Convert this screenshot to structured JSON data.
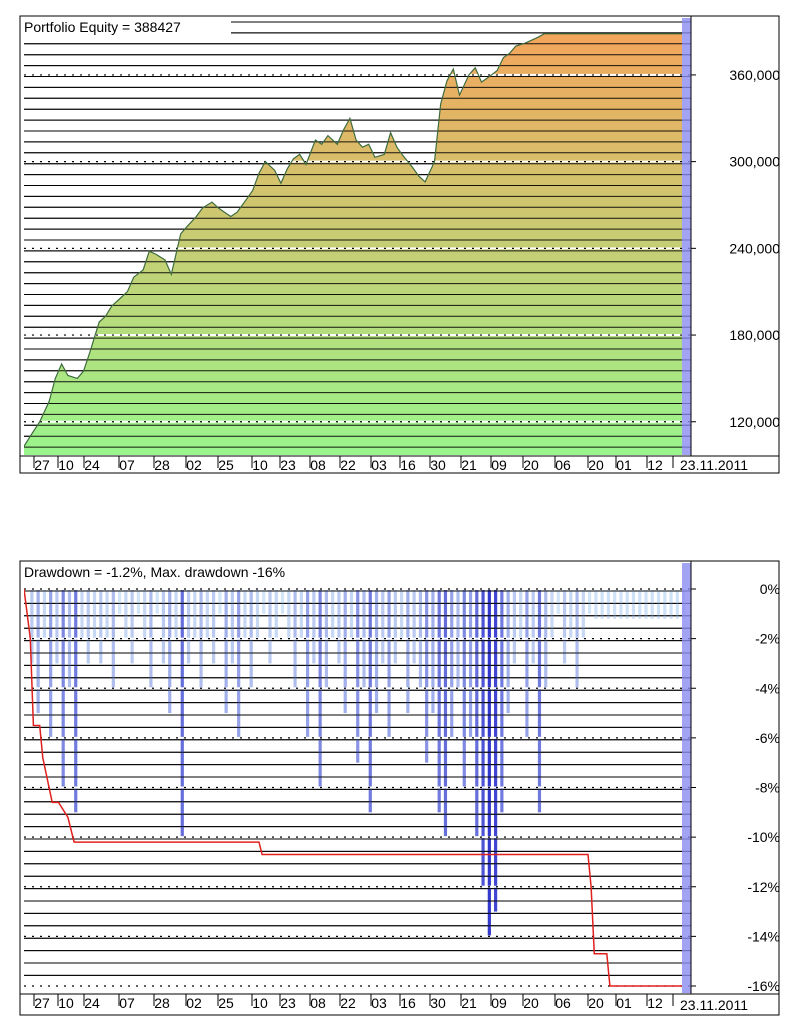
{
  "equity_panel": {
    "title": "Portfolio Equity = 388427",
    "date_label": "23.11.2011",
    "x_tick_labels": [
      "27",
      "10",
      "24",
      "07",
      "28",
      "02",
      "25",
      "10",
      "23",
      "08",
      "22",
      "03",
      "16",
      "30",
      "21",
      "09",
      "20",
      "06",
      "20",
      "01",
      "12",
      "23"
    ],
    "y_tick_labels": [
      "360,000",
      "300,000",
      "240,000",
      "180,000",
      "120,000"
    ]
  },
  "drawdown_panel": {
    "title": "Drawdown = -1.2%, Max. drawdown -16%",
    "date_label": "23.11.2011",
    "x_tick_labels": [
      "27",
      "10",
      "24",
      "07",
      "28",
      "02",
      "25",
      "10",
      "23",
      "08",
      "22",
      "03",
      "16",
      "30",
      "21",
      "09",
      "20",
      "06",
      "20",
      "01",
      "12",
      "23"
    ],
    "y_tick_labels": [
      "0%",
      "-2%",
      "-4%",
      "-6%",
      "-8%",
      "-10%",
      "-12%",
      "-14%",
      "-16%"
    ]
  },
  "colors": {
    "equity_fill_top": "#f3a65c",
    "equity_fill_bottom": "#9af58c",
    "equity_line": "#3e6b3e",
    "drawdown_fill_top": "#dff2fb",
    "drawdown_fill_bottom": "#1c1fc8",
    "max_drawdown_line": "#e0201c",
    "current_bar": "#8c8cf0",
    "grid": "#000000"
  },
  "chart_data": [
    {
      "type": "area",
      "title": "Portfolio Equity = 388427",
      "x_tick_labels": [
        "27",
        "10",
        "24",
        "07",
        "28",
        "02",
        "25",
        "10",
        "23",
        "08",
        "22",
        "03",
        "16",
        "30",
        "21",
        "09",
        "20",
        "06",
        "20",
        "01",
        "12",
        "23.11.2011"
      ],
      "ylim": [
        97000,
        398000
      ],
      "y_ticks": [
        120000,
        180000,
        240000,
        300000,
        360000
      ],
      "grid": true,
      "series": [
        {
          "x": [
            0,
            2,
            5,
            8,
            10,
            12,
            14,
            17,
            19,
            21,
            24,
            26,
            28,
            31,
            33,
            35,
            38,
            40,
            42,
            45,
            47,
            50,
            52,
            55,
            57,
            60,
            62,
            64,
            66,
            68,
            71,
            73,
            75,
            77,
            80,
            82,
            84,
            86,
            88,
            90,
            93,
            95,
            97,
            100,
            102,
            104,
            106,
            108,
            110,
            112,
            115,
            117,
            119,
            121,
            124,
            126,
            128,
            131,
            133,
            135,
            137,
            139,
            142,
            144,
            146,
            148,
            151,
            153,
            155,
            157,
            160,
            162,
            164,
            166,
            168,
            171,
            173,
            175,
            177,
            179,
            182,
            184,
            186,
            188,
            190,
            193,
            195,
            197,
            199,
            202,
            204,
            206,
            208,
            210
          ],
          "values": [
            103000,
            110000,
            120000,
            134000,
            150000,
            160000,
            152000,
            150000,
            155000,
            168000,
            189000,
            193000,
            200000,
            206000,
            210000,
            220000,
            225000,
            238000,
            236000,
            232000,
            222000,
            250000,
            255000,
            262000,
            268000,
            272000,
            268000,
            265000,
            262000,
            265000,
            274000,
            280000,
            292000,
            300000,
            294000,
            285000,
            295000,
            302000,
            305000,
            298000,
            315000,
            312000,
            318000,
            312000,
            322000,
            330000,
            315000,
            310000,
            312000,
            303000,
            305000,
            320000,
            310000,
            304000,
            296000,
            290000,
            286000,
            300000,
            340000,
            356000,
            364000,
            346000,
            360000,
            365000,
            355000,
            358000,
            363000,
            372000,
            375000,
            380000,
            382000,
            384000,
            386000,
            388427,
            388427,
            388427,
            388427,
            388427,
            388427,
            388427,
            388427,
            388427,
            388427,
            388427,
            388427,
            388427,
            388427,
            388427,
            388427,
            388427,
            388427,
            388427,
            388427,
            388427
          ]
        }
      ]
    },
    {
      "type": "area",
      "title": "Drawdown = -1.2%, Max. drawdown -16%",
      "x_tick_labels": [
        "27",
        "10",
        "24",
        "07",
        "28",
        "02",
        "25",
        "10",
        "23",
        "08",
        "22",
        "03",
        "16",
        "30",
        "21",
        "09",
        "20",
        "06",
        "20",
        "01",
        "12",
        "23.11.2011"
      ],
      "ylim": [
        -16,
        0
      ],
      "y_ticks": [
        0,
        -2,
        -4,
        -6,
        -8,
        -10,
        -12,
        -14,
        -16
      ],
      "grid": true,
      "series": [
        {
          "name": "Drawdown",
          "x": [
            0,
            2,
            4,
            6,
            8,
            10,
            12,
            14,
            16,
            18,
            20,
            22,
            24,
            26,
            28,
            30,
            32,
            34,
            36,
            38,
            40,
            42,
            44,
            46,
            48,
            50,
            52,
            54,
            56,
            58,
            60,
            62,
            64,
            66,
            68,
            70,
            72,
            74,
            76,
            78,
            80,
            82,
            84,
            86,
            88,
            90,
            92,
            94,
            96,
            98,
            100,
            102,
            104,
            106,
            108,
            110,
            112,
            114,
            116,
            118,
            120,
            122,
            124,
            126,
            128,
            130,
            132,
            134,
            136,
            138,
            140,
            142,
            144,
            146,
            148,
            150,
            152,
            154,
            156,
            158,
            160,
            162,
            164,
            166,
            168,
            170,
            172,
            174,
            176,
            178,
            180,
            182,
            184,
            186,
            188,
            190,
            192,
            194,
            196,
            198,
            200,
            202,
            204,
            206,
            208,
            210
          ],
          "values": [
            0,
            -3,
            -5,
            -2,
            -6,
            -3,
            -8,
            -4,
            -9,
            -2,
            -3,
            -2,
            -3,
            -2,
            -4,
            -1,
            -2,
            -3,
            -1,
            -2,
            -4,
            -1,
            -3,
            -5,
            -2,
            -10,
            -3,
            -2,
            -4,
            -2,
            -3,
            -1,
            -5,
            -3,
            -6,
            -2,
            -4,
            -2,
            -1,
            -3,
            -2,
            -1,
            -2,
            -4,
            -2,
            -6,
            -3,
            -8,
            -4,
            -2,
            -3,
            -5,
            -2,
            -7,
            -4,
            -9,
            -5,
            -3,
            -6,
            -3,
            -2,
            -5,
            -3,
            -4,
            -7,
            -5,
            -9,
            -10,
            -6,
            -4,
            -8,
            -6,
            -10,
            -12,
            -14,
            -13,
            -9,
            -5,
            -3,
            -2,
            -6,
            -3,
            -9,
            -4,
            -2,
            -1,
            -3,
            -2,
            -4,
            -2,
            -1,
            -1.2,
            -1.2,
            -1.2,
            -1.2,
            -1.2,
            -1.2,
            -1.2,
            -1.2,
            -1.2,
            -1.2,
            -1.2,
            -1.2,
            -1.2,
            -1.2,
            -1.2
          ]
        },
        {
          "name": "Max. drawdown",
          "x": [
            0,
            2,
            3,
            5,
            6,
            9,
            10,
            11,
            14,
            16,
            18,
            20,
            22,
            28,
            29,
            30,
            40,
            50,
            60,
            70,
            75,
            76,
            80,
            90,
            100,
            110,
            120,
            130,
            140,
            150,
            160,
            170,
            180,
            181,
            182,
            186,
            187,
            188,
            190,
            200,
            210
          ],
          "values": [
            0,
            -2,
            -5.5,
            -5.5,
            -6.8,
            -8.6,
            -8.6,
            -8.6,
            -9.2,
            -10.2,
            -10.2,
            -10.2,
            -10.2,
            -10.2,
            -10.2,
            -10.2,
            -10.2,
            -10.2,
            -10.2,
            -10.2,
            -10.2,
            -10.7,
            -10.7,
            -10.7,
            -10.7,
            -10.7,
            -10.7,
            -10.7,
            -10.7,
            -10.7,
            -10.7,
            -10.7,
            -10.7,
            -12,
            -14.7,
            -14.7,
            -16,
            -16,
            -16,
            -16,
            -16
          ]
        }
      ]
    }
  ]
}
